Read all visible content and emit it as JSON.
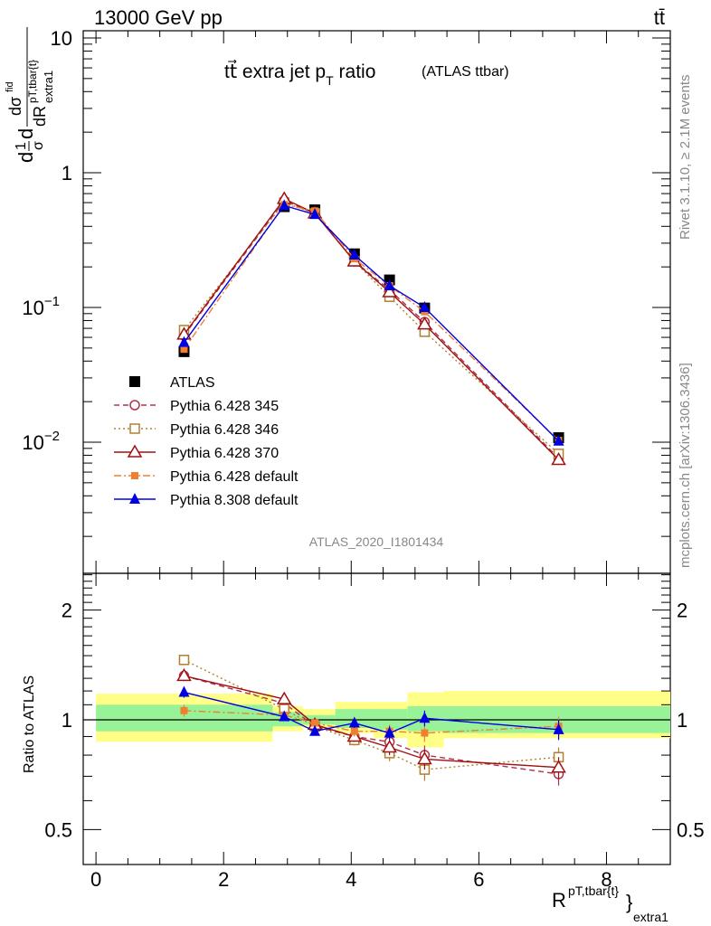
{
  "header": {
    "energy_label": "13000 GeV pp",
    "process_label": "tt̄",
    "main_title": "tt⃗ extra jet p",
    "main_title_sub": "T",
    "main_title_suffix": " ratio",
    "main_title_tag": "(ATLAS ttbar)",
    "analysis_id": "ATLAS_2020_I1801434",
    "rivet_version": "Rivet 3.1.10, ≥ 2.1M events",
    "source": "mcplots.cern.ch [arXiv:1306.3436]"
  },
  "axes": {
    "top_ylabel": "1/σ dσ^fid / dR^{pT,tbar{t}}_{extra1}",
    "top_ylabel_parts": {
      "frac1": "1",
      "sigma": "σ",
      "d": "d",
      "dsigma": "dσ",
      "fid": "fid",
      "dR": "dR",
      "sup": "pT,tbar{t}",
      "sub": "extra1"
    },
    "bottom_ylabel": "Ratio to ATLAS",
    "xlabel": "R",
    "xlabel_sup": "pT,tbar{t}",
    "xlabel_sub": "extra1",
    "top_yticks": [
      {
        "value": 10,
        "base": "10",
        "exp": ""
      },
      {
        "value": 1,
        "base": "1",
        "exp": ""
      },
      {
        "value": 0.1,
        "base": "10",
        "exp": "−1"
      },
      {
        "value": 0.01,
        "base": "10",
        "exp": "−2"
      }
    ],
    "ratio_yticks": [
      "0.5",
      "1",
      "2"
    ],
    "xticks": [
      "0",
      "2",
      "4",
      "6",
      "8"
    ]
  },
  "chart_data": [
    {
      "type": "scatter",
      "panel": "main",
      "title": "tt⃗ extra jet pT ratio (ATLAS ttbar)",
      "xlabel": "R^{pT,tbar{t}}_{extra1}",
      "ylabel": "1/σ dσ^fid / dR^{pT,tbar{t}}_{extra1}",
      "xlim": [
        -0.2,
        9.0
      ],
      "ylim": [
        0.001,
        12
      ],
      "yscale": "log",
      "legend_position": "lower-left",
      "x": [
        1.38,
        2.95,
        3.43,
        4.05,
        4.6,
        5.15,
        7.25
      ],
      "series": [
        {
          "name": "ATLAS",
          "color": "#000000",
          "marker": "square-filled",
          "line": "none",
          "values": [
            0.047,
            0.56,
            0.53,
            0.25,
            0.16,
            0.099,
            0.0108
          ]
        },
        {
          "name": "Pythia 6.428 345",
          "color": "#b03050",
          "marker": "circle-open",
          "line": "dashed",
          "values": [
            0.062,
            0.62,
            0.5,
            0.22,
            0.135,
            0.078,
            0.0076
          ]
        },
        {
          "name": "Pythia 6.428 346",
          "color": "#b08030",
          "marker": "square-open",
          "line": "dotted",
          "values": [
            0.068,
            0.6,
            0.5,
            0.22,
            0.12,
            0.066,
            0.0082
          ]
        },
        {
          "name": "Pythia 6.428 370",
          "color": "#a01010",
          "marker": "triangle-open",
          "line": "solid",
          "values": [
            0.063,
            0.64,
            0.5,
            0.22,
            0.13,
            0.075,
            0.0074
          ]
        },
        {
          "name": "Pythia 6.428 default",
          "color": "#f08030",
          "marker": "square-filled-small",
          "line": "dashdot",
          "values": [
            0.049,
            0.58,
            0.52,
            0.23,
            0.145,
            0.093,
            0.0103
          ]
        },
        {
          "name": "Pythia 8.308 default",
          "color": "#0000e0",
          "marker": "triangle-filled",
          "line": "solid",
          "values": [
            0.055,
            0.57,
            0.49,
            0.245,
            0.145,
            0.1,
            0.0102
          ]
        }
      ]
    },
    {
      "type": "line",
      "panel": "ratio",
      "ylabel": "Ratio to ATLAS",
      "xlim": [
        -0.2,
        9.0
      ],
      "ylim": [
        0.4,
        2.5
      ],
      "yscale": "log",
      "reference_line": 1,
      "x": [
        1.38,
        2.95,
        3.43,
        4.05,
        4.6,
        5.15,
        7.25
      ],
      "uncertainty_bins": [
        0.0,
        2.77,
        3.24,
        3.75,
        4.35,
        4.88,
        5.45,
        9.0
      ],
      "band_inner_1sigma": [
        [
          0.93,
          1.1
        ],
        [
          0.96,
          1.05
        ],
        [
          0.97,
          1.03
        ],
        [
          0.95,
          1.07
        ],
        [
          0.94,
          1.07
        ],
        [
          0.93,
          1.09
        ],
        [
          0.92,
          1.09
        ]
      ],
      "band_outer_2sigma": [
        [
          0.87,
          1.18
        ],
        [
          0.93,
          1.09
        ],
        [
          0.95,
          1.07
        ],
        [
          0.92,
          1.12
        ],
        [
          0.89,
          1.12
        ],
        [
          0.84,
          1.19
        ],
        [
          0.89,
          1.2
        ]
      ],
      "series": [
        {
          "name": "Pythia 6.428 345",
          "color": "#b03050",
          "values": [
            1.32,
            1.11,
            0.96,
            0.9,
            0.87,
            0.8,
            0.71
          ],
          "errors": [
            0.04,
            0.02,
            0.02,
            0.03,
            0.04,
            0.05,
            0.05
          ]
        },
        {
          "name": "Pythia 6.428 346",
          "color": "#b08030",
          "values": [
            1.46,
            1.07,
            0.96,
            0.88,
            0.81,
            0.73,
            0.79
          ],
          "errors": [
            0.04,
            0.02,
            0.02,
            0.03,
            0.04,
            0.05,
            0.05
          ]
        },
        {
          "name": "Pythia 6.428 370",
          "color": "#a01010",
          "values": [
            1.32,
            1.14,
            0.97,
            0.9,
            0.84,
            0.78,
            0.74
          ],
          "errors": [
            0.04,
            0.02,
            0.02,
            0.03,
            0.04,
            0.05,
            0.05
          ]
        },
        {
          "name": "Pythia 6.428 default",
          "color": "#f08030",
          "values": [
            1.06,
            1.03,
            0.98,
            0.93,
            0.93,
            0.92,
            0.96
          ],
          "errors": [
            0.04,
            0.02,
            0.02,
            0.03,
            0.04,
            0.05,
            0.06
          ]
        },
        {
          "name": "Pythia 8.308 default",
          "color": "#0000e0",
          "values": [
            1.19,
            1.02,
            0.93,
            0.98,
            0.92,
            1.01,
            0.94
          ],
          "errors": [
            0.04,
            0.02,
            0.02,
            0.03,
            0.04,
            0.05,
            0.06
          ]
        }
      ]
    }
  ]
}
